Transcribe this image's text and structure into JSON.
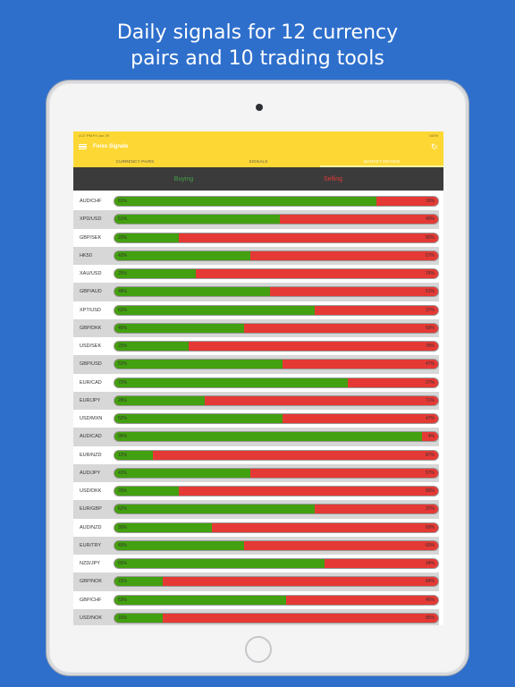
{
  "headline": {
    "line1": "Daily signals for 12 currency",
    "line2": "pairs and 10 trading tools"
  },
  "status_bar": {
    "left": "4:27 PM  Fri Jun 29",
    "right": "100%"
  },
  "app": {
    "title": "Forex Signals"
  },
  "tabs": [
    "CURRENCY PAIRS",
    "SIGNALS",
    "MARKET REVIEW"
  ],
  "active_tab": 2,
  "columns": {
    "buy": "Buying",
    "sell": "Selling"
  },
  "colors": {
    "buy": "#43a010",
    "sell": "#e53935",
    "accent": "#fdd835",
    "page_bg": "#2e6fcc"
  },
  "pairs": [
    {
      "pair": "AUD/CHF",
      "buy": "81%",
      "sell": "19%",
      "buy_pct": 81
    },
    {
      "pair": "XPD/USD",
      "buy": "51%",
      "sell": "49%",
      "buy_pct": 51
    },
    {
      "pair": "GBP/SEK",
      "buy": "20%",
      "sell": "80%",
      "buy_pct": 20
    },
    {
      "pair": "HK50",
      "buy": "42%",
      "sell": "57%",
      "buy_pct": 42
    },
    {
      "pair": "XAU/USD",
      "buy": "25%",
      "sell": "74%",
      "buy_pct": 25
    },
    {
      "pair": "GBP/AUD",
      "buy": "48%",
      "sell": "51%",
      "buy_pct": 48
    },
    {
      "pair": "XPT/USD",
      "buy": "62%",
      "sell": "37%",
      "buy_pct": 62
    },
    {
      "pair": "GBP/DKK",
      "buy": "40%",
      "sell": "60%",
      "buy_pct": 40
    },
    {
      "pair": "USD/SEK",
      "buy": "23%",
      "sell": "76%",
      "buy_pct": 23
    },
    {
      "pair": "GBP/USD",
      "buy": "52%",
      "sell": "47%",
      "buy_pct": 52
    },
    {
      "pair": "EUR/CAD",
      "buy": "72%",
      "sell": "27%",
      "buy_pct": 72
    },
    {
      "pair": "EUR/JPY",
      "buy": "28%",
      "sell": "71%",
      "buy_pct": 28
    },
    {
      "pair": "USD/MXN",
      "buy": "52%",
      "sell": "47%",
      "buy_pct": 52
    },
    {
      "pair": "AUD/CAD",
      "buy": "95%",
      "sell": "4%",
      "buy_pct": 95
    },
    {
      "pair": "EUR/NZD",
      "buy": "12%",
      "sell": "87%",
      "buy_pct": 12
    },
    {
      "pair": "AUD/JPY",
      "buy": "42%",
      "sell": "57%",
      "buy_pct": 42
    },
    {
      "pair": "USD/DKK",
      "buy": "20%",
      "sell": "80%",
      "buy_pct": 20
    },
    {
      "pair": "EUR/GBP",
      "buy": "62%",
      "sell": "37%",
      "buy_pct": 62
    },
    {
      "pair": "AUD/NZD",
      "buy": "30%",
      "sell": "69%",
      "buy_pct": 30
    },
    {
      "pair": "EUR/TRY",
      "buy": "40%",
      "sell": "60%",
      "buy_pct": 40
    },
    {
      "pair": "NZD/JPY",
      "buy": "65%",
      "sell": "34%",
      "buy_pct": 65
    },
    {
      "pair": "GBP/NOK",
      "buy": "15%",
      "sell": "84%",
      "buy_pct": 15
    },
    {
      "pair": "GBP/CHF",
      "buy": "53%",
      "sell": "46%",
      "buy_pct": 53
    },
    {
      "pair": "USD/NOK",
      "buy": "15%",
      "sell": "85%",
      "buy_pct": 15
    }
  ]
}
